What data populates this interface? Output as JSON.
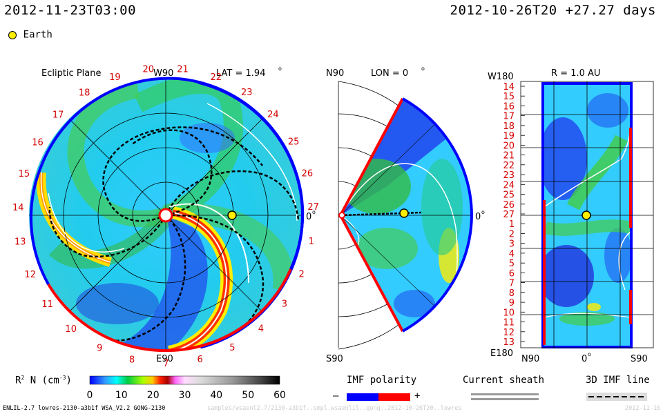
{
  "header": {
    "current_time": "2012-11-23T03:00",
    "run_info": "2012-10-26T20 +27.27 days"
  },
  "legend_earth": {
    "label": "Earth",
    "color": "#ffee00"
  },
  "ecliptic": {
    "title": "Ecliptic Plane",
    "top_label": "W90",
    "lat_label": "LAT = 1.94",
    "lat_sup": "o",
    "bottom_label": "E90",
    "zero_label": "0",
    "zero_sup": "o",
    "carrington_labels": [
      "1",
      "2",
      "3",
      "4",
      "5",
      "6",
      "7",
      "8",
      "9",
      "10",
      "11",
      "12",
      "13",
      "14",
      "15",
      "16",
      "17",
      "18",
      "19",
      "20",
      "21",
      "22",
      "23",
      "24",
      "25",
      "26",
      "27"
    ]
  },
  "meridional": {
    "top_label": "N90",
    "lon_label": "LON = 0",
    "lon_sup": "o",
    "bottom_label": "S90",
    "zero_label": "0",
    "zero_sup": "o"
  },
  "radial": {
    "top_left": "W180",
    "title": "R = 1.0 AU",
    "bottom_left": "E180",
    "bottom_n": "N90",
    "bottom_zero": "0",
    "bottom_zero_sup": "o",
    "bottom_s": "S90",
    "ytick_labels": [
      "14",
      "15",
      "16",
      "17",
      "18",
      "19",
      "20",
      "21",
      "22",
      "23",
      "24",
      "25",
      "26",
      "27",
      "1",
      "2",
      "3",
      "4",
      "5",
      "6",
      "7",
      "8",
      "9",
      "10",
      "11",
      "12",
      "13"
    ]
  },
  "colorbar": {
    "label_prefix": "R",
    "label_sup": "2",
    "label_main": " N (cm",
    "label_exp": "-3",
    "label_close": ")",
    "ticks": [
      "0",
      "10",
      "20",
      "30",
      "40",
      "50",
      "60"
    ]
  },
  "imf_polarity": {
    "title": "IMF polarity",
    "minus": "–",
    "plus": "+",
    "minus_color": "#0000ff",
    "plus_color": "#ff0000"
  },
  "current_sheath": {
    "title": "Current sheath"
  },
  "imf_line": {
    "title": "3D IMF line"
  },
  "footer": {
    "model": "ENLIL-2.7 lowres-2130-a3b1f WSA_V2.2 GONG-2130",
    "run_path": "samples/wsaenl2.7/2130-a3b1f..smpl.wsaenlil..gong..2012-10-26T20..lowres",
    "trailing": "2012-11-16"
  }
}
